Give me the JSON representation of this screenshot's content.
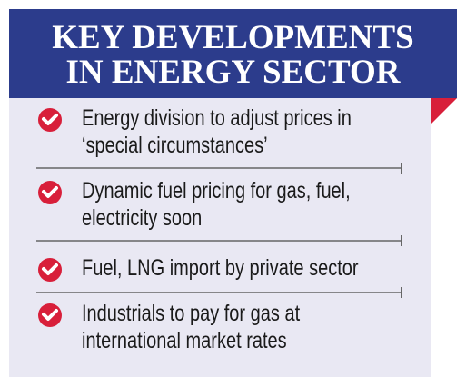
{
  "header": {
    "title": [
      "KEY DEVELOPMENTS",
      "IN ENERGY SECTOR"
    ]
  },
  "items": [
    {
      "lines": [
        "Energy division to adjust prices in",
        "‘special circumstances’"
      ]
    },
    {
      "lines": [
        "Dynamic fuel pricing for gas, fuel,",
        "electricity soon"
      ]
    },
    {
      "lines": [
        "Fuel, LNG import by private sector"
      ]
    },
    {
      "lines": [
        "Industrials to pay for gas at",
        "international market rates"
      ]
    }
  ]
}
